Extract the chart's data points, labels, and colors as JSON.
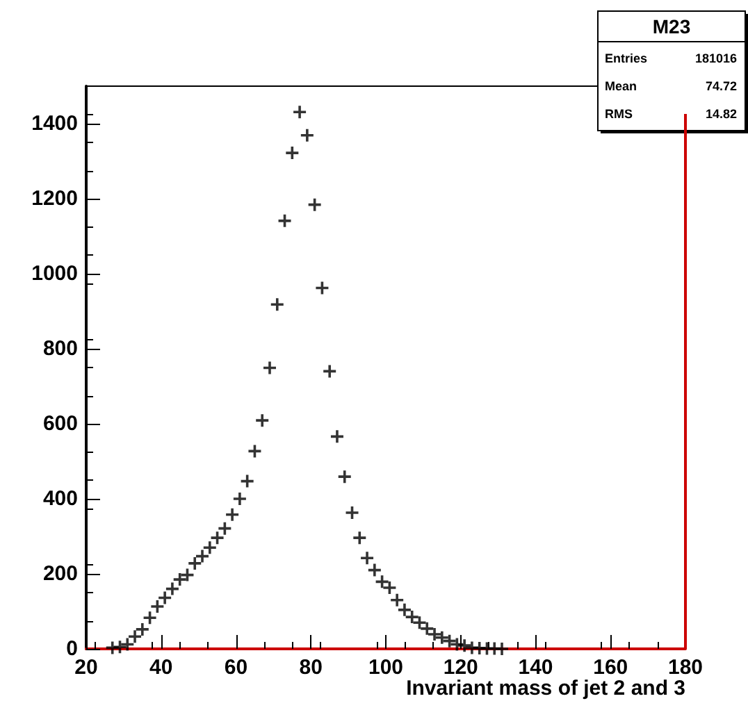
{
  "chart_data": {
    "type": "scatter",
    "title": "M23",
    "xlabel": "Invariant mass of jet 2 and 3",
    "annotations": [
      "Entries 181016",
      "Mean 74.72",
      "RMS 14.82"
    ],
    "x": [
      27,
      29,
      31,
      33,
      35,
      37,
      39,
      41,
      43,
      45,
      47,
      49,
      51,
      53,
      55,
      57,
      59,
      61,
      63,
      65,
      67,
      69,
      71,
      73,
      75,
      77,
      79,
      81,
      83,
      85,
      87,
      89,
      91,
      93,
      95,
      97,
      99,
      101,
      103,
      105,
      107,
      109,
      111,
      113,
      115,
      117,
      119,
      121,
      123,
      125,
      127,
      129,
      131
    ],
    "values": [
      3,
      5,
      12,
      33,
      52,
      83,
      113,
      136,
      160,
      185,
      197,
      228,
      247,
      270,
      296,
      321,
      358,
      400,
      447,
      527,
      609,
      749,
      918,
      1141,
      1322,
      1431,
      1369,
      1184,
      962,
      740,
      566,
      459,
      363,
      296,
      242,
      210,
      179,
      163,
      130,
      104,
      85,
      70,
      54,
      39,
      30,
      21,
      12,
      9,
      3,
      2,
      1,
      1,
      0
    ],
    "color": "#000000",
    "marker": "cross",
    "xlim": [
      20,
      180
    ],
    "xticks": [
      20,
      40,
      60,
      80,
      100,
      120,
      140,
      160,
      180
    ],
    "ylim": [
      0,
      1500
    ],
    "yticks": [
      0,
      200,
      400,
      600,
      800,
      1000,
      1200,
      1400
    ],
    "grid": false
  }
}
